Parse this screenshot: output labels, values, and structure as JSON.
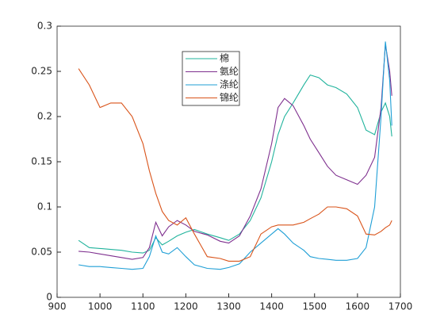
{
  "chart_data": {
    "type": "line",
    "x": [
      950,
      975,
      1000,
      1025,
      1050,
      1075,
      1100,
      1115,
      1130,
      1145,
      1160,
      1180,
      1200,
      1220,
      1250,
      1280,
      1300,
      1325,
      1350,
      1375,
      1400,
      1415,
      1430,
      1450,
      1475,
      1490,
      1510,
      1530,
      1550,
      1575,
      1600,
      1620,
      1640,
      1655,
      1665,
      1675,
      1680
    ],
    "series": [
      {
        "name": "棉",
        "color": "#20b39c",
        "values": [
          0.063,
          0.055,
          0.054,
          0.053,
          0.052,
          0.05,
          0.049,
          0.052,
          0.066,
          0.058,
          0.062,
          0.068,
          0.072,
          0.075,
          0.07,
          0.066,
          0.063,
          0.07,
          0.085,
          0.11,
          0.15,
          0.18,
          0.2,
          0.215,
          0.235,
          0.246,
          0.243,
          0.235,
          0.232,
          0.225,
          0.21,
          0.185,
          0.18,
          0.205,
          0.215,
          0.2,
          0.178
        ]
      },
      {
        "name": "氨纶",
        "color": "#7e2f8e",
        "values": [
          0.051,
          0.05,
          0.048,
          0.046,
          0.044,
          0.042,
          0.044,
          0.055,
          0.083,
          0.068,
          0.078,
          0.085,
          0.08,
          0.073,
          0.069,
          0.062,
          0.06,
          0.068,
          0.09,
          0.12,
          0.17,
          0.21,
          0.22,
          0.212,
          0.19,
          0.175,
          0.16,
          0.145,
          0.135,
          0.13,
          0.125,
          0.135,
          0.155,
          0.21,
          0.28,
          0.25,
          0.223
        ]
      },
      {
        "name": "涤纶",
        "color": "#1f9fd6",
        "values": [
          0.036,
          0.034,
          0.034,
          0.033,
          0.032,
          0.031,
          0.032,
          0.045,
          0.068,
          0.05,
          0.048,
          0.055,
          0.045,
          0.036,
          0.032,
          0.031,
          0.033,
          0.037,
          0.05,
          0.06,
          0.07,
          0.076,
          0.07,
          0.06,
          0.052,
          0.045,
          0.043,
          0.042,
          0.041,
          0.041,
          0.043,
          0.055,
          0.1,
          0.2,
          0.283,
          0.24,
          0.19
        ]
      },
      {
        "name": "锦纶",
        "color": "#d95319",
        "values": [
          0.253,
          0.235,
          0.21,
          0.215,
          0.215,
          0.2,
          0.17,
          0.14,
          0.115,
          0.095,
          0.085,
          0.08,
          0.088,
          0.07,
          0.045,
          0.043,
          0.04,
          0.04,
          0.045,
          0.07,
          0.078,
          0.08,
          0.08,
          0.08,
          0.083,
          0.087,
          0.092,
          0.1,
          0.1,
          0.098,
          0.09,
          0.07,
          0.069,
          0.073,
          0.077,
          0.08,
          0.085
        ]
      }
    ],
    "xlim": [
      900,
      1700
    ],
    "xticks": [
      900,
      1000,
      1100,
      1200,
      1300,
      1400,
      1500,
      1600,
      1700
    ],
    "ylim": [
      0,
      0.3
    ],
    "yticks": [
      0,
      0.05,
      0.1,
      0.15,
      0.2,
      0.25,
      0.3
    ]
  }
}
